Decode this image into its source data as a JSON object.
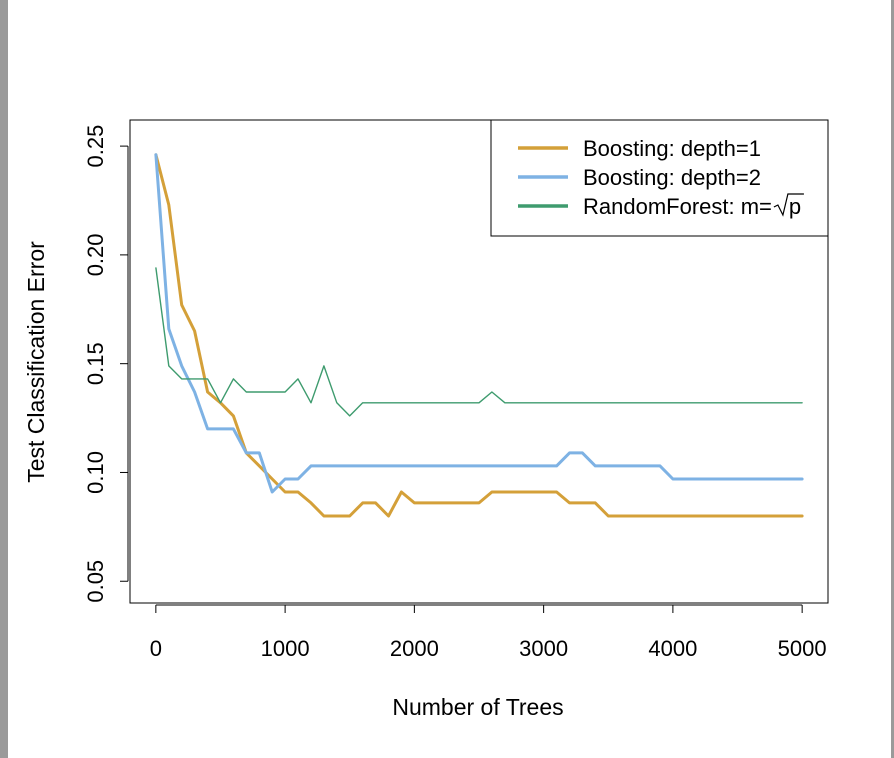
{
  "chart_data": {
    "type": "line",
    "title": "",
    "xlabel": "Number of Trees",
    "ylabel": "Test Classification Error",
    "xlim": [
      -200,
      5200
    ],
    "ylim": [
      0.04,
      0.262
    ],
    "x_ticks": [
      0,
      1000,
      2000,
      3000,
      4000,
      5000
    ],
    "x_tick_labels": [
      "0",
      "1000",
      "2000",
      "3000",
      "4000",
      "5000"
    ],
    "y_ticks": [
      0.05,
      0.1,
      0.15,
      0.2,
      0.25
    ],
    "y_tick_labels": [
      "0.05",
      "0.10",
      "0.15",
      "0.20",
      "0.25"
    ],
    "grid": false,
    "legend_position": "top-right",
    "series": [
      {
        "name": "Boosting: depth=1",
        "color": "#d4a039",
        "line_width": "thick",
        "x": [
          0,
          100,
          200,
          300,
          400,
          500,
          600,
          700,
          800,
          900,
          1000,
          1100,
          1200,
          1300,
          1400,
          1500,
          1600,
          1700,
          1800,
          1900,
          2000,
          2500,
          2600,
          3100,
          3200,
          3400,
          3500,
          5000
        ],
        "y": [
          0.246,
          0.223,
          0.177,
          0.165,
          0.137,
          0.132,
          0.126,
          0.109,
          0.103,
          0.097,
          0.091,
          0.091,
          0.086,
          0.08,
          0.08,
          0.08,
          0.086,
          0.086,
          0.08,
          0.091,
          0.086,
          0.086,
          0.091,
          0.091,
          0.086,
          0.086,
          0.08,
          0.08
        ]
      },
      {
        "name": "Boosting: depth=2",
        "color": "#7eb2e4",
        "line_width": "thick",
        "x": [
          0,
          100,
          200,
          300,
          400,
          500,
          600,
          700,
          800,
          900,
          1000,
          1100,
          1200,
          3100,
          3200,
          3300,
          3400,
          3900,
          4000,
          5000
        ],
        "y": [
          0.246,
          0.166,
          0.149,
          0.137,
          0.12,
          0.12,
          0.12,
          0.109,
          0.109,
          0.091,
          0.097,
          0.097,
          0.103,
          0.103,
          0.109,
          0.109,
          0.103,
          0.103,
          0.097,
          0.097
        ]
      },
      {
        "name": "RandomForest: m=",
        "name_suffix": "p",
        "color": "#3e9b6e",
        "line_width": "thin",
        "x": [
          0,
          100,
          200,
          300,
          400,
          500,
          600,
          700,
          800,
          900,
          1000,
          1100,
          1200,
          1300,
          1400,
          1500,
          1600,
          1700,
          2500,
          2600,
          2700,
          5000
        ],
        "y": [
          0.194,
          0.149,
          0.143,
          0.143,
          0.143,
          0.132,
          0.143,
          0.137,
          0.137,
          0.137,
          0.137,
          0.143,
          0.132,
          0.149,
          0.132,
          0.126,
          0.132,
          0.132,
          0.132,
          0.137,
          0.132,
          0.132
        ]
      }
    ]
  }
}
